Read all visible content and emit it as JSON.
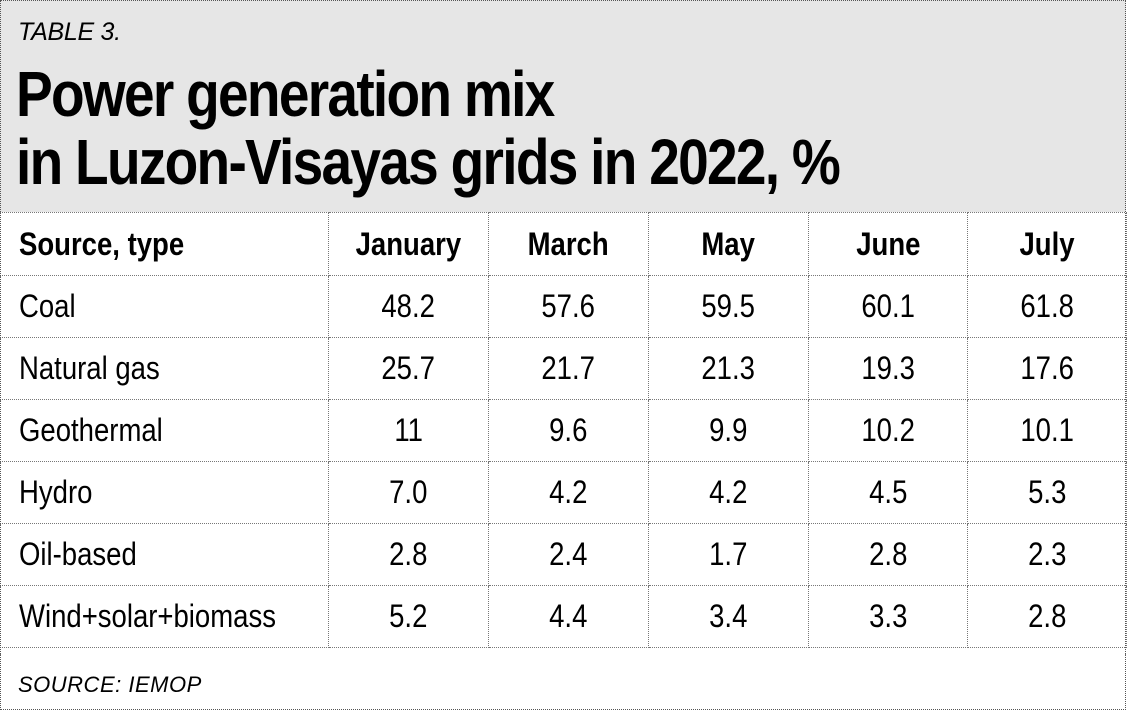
{
  "header": {
    "table_label": "TABLE 3.",
    "title_line1": "Power generation mix",
    "title_line2": "in Luzon-Visayas grids in 2022, %"
  },
  "footer": {
    "source": "SOURCE: IEMOP"
  },
  "colors": {
    "header_background": "#e6e6e6",
    "table_background": "#ffffff",
    "text": "#000000"
  },
  "chart_data": {
    "type": "table",
    "title": "Power generation mix in Luzon-Visayas grids in 2022, %",
    "columns": [
      "Source, type",
      "January",
      "March",
      "May",
      "June",
      "July"
    ],
    "rows": [
      {
        "label": "Coal",
        "values": [
          "48.2",
          "57.6",
          "59.5",
          "60.1",
          "61.8"
        ]
      },
      {
        "label": "Natural gas",
        "values": [
          "25.7",
          "21.7",
          "21.3",
          "19.3",
          "17.6"
        ]
      },
      {
        "label": "Geothermal",
        "values": [
          "11",
          "9.6",
          "9.9",
          "10.2",
          "10.1"
        ]
      },
      {
        "label": "Hydro",
        "values": [
          "7.0",
          "4.2",
          "4.2",
          "4.5",
          "5.3"
        ]
      },
      {
        "label": "Oil-based",
        "values": [
          "2.8",
          "2.4",
          "1.7",
          "2.8",
          "2.3"
        ]
      },
      {
        "label": "Wind+solar+biomass",
        "values": [
          "5.2",
          "4.4",
          "3.4",
          "3.3",
          "2.8"
        ]
      }
    ]
  }
}
